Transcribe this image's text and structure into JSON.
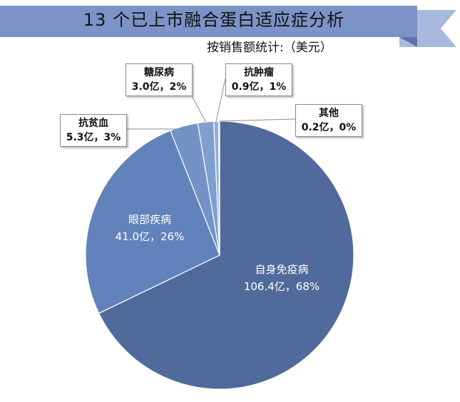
{
  "title": "13 个已上市融合蛋白适应症分析",
  "subtitle": "按销售额统计:（美元）",
  "colors": {
    "banner": "#7b93c6",
    "banner_light": "#a9b9dd",
    "slice_main": "#506a9b",
    "slice_secondary": "#6282bb",
    "slice_small": "#7f9fd0",
    "slice_border": "#ffffff"
  },
  "chart_data": {
    "type": "pie",
    "title": "13 个已上市融合蛋白适应症分析",
    "subtitle": "按销售额统计:（美元）",
    "slices": [
      {
        "name": "自身免疫病",
        "value": 106.4,
        "value_label": "106.4亿",
        "percent_label": "68%",
        "color": "#506a9b"
      },
      {
        "name": "眼部疾病",
        "value": 41.0,
        "value_label": "41.0亿",
        "percent_label": "26%",
        "color": "#6282bb"
      },
      {
        "name": "抗贫血",
        "value": 5.3,
        "value_label": "5.3亿",
        "percent_label": "3%",
        "color": "#7393c7"
      },
      {
        "name": "糖尿病",
        "value": 3.0,
        "value_label": "3.0亿",
        "percent_label": "2%",
        "color": "#7f9fd0"
      },
      {
        "name": "抗肿瘤",
        "value": 0.9,
        "value_label": "0.9亿",
        "percent_label": "1%",
        "color": "#90aedb"
      },
      {
        "name": "其他",
        "value": 0.2,
        "value_label": "0.2亿",
        "percent_label": "0%",
        "color": "#a3bce3"
      }
    ]
  }
}
